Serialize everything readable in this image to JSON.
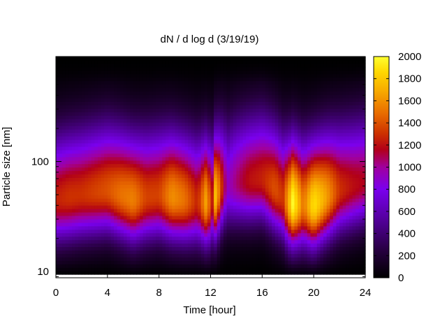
{
  "chart_data": {
    "type": "heatmap",
    "title": "dN / d log d (3/19/19)",
    "xlabel": "Time [hour]",
    "ylabel": "Particle size [nm]",
    "xlim": [
      0,
      24
    ],
    "x_ticks": [
      0,
      4,
      8,
      12,
      16,
      20,
      24
    ],
    "ylim": [
      8.8,
      900
    ],
    "y_scale": "log",
    "y_tick_labels": [
      "10",
      "100"
    ],
    "y_ticks": [
      10,
      100
    ],
    "colorbar": {
      "range": [
        0,
        2000
      ],
      "ticks": [
        0,
        200,
        400,
        600,
        800,
        1000,
        1200,
        1400,
        1600,
        1800,
        2000
      ],
      "palette": [
        "#000000",
        "#7a00c8",
        "#c02818",
        "#e05a00",
        "#ffe000",
        "#ffff30"
      ]
    },
    "grid": false,
    "mode_diameter_nm": [
      [
        0,
        45
      ],
      [
        2,
        50
      ],
      [
        4,
        55
      ],
      [
        6,
        45
      ],
      [
        8,
        50
      ],
      [
        10,
        45
      ],
      [
        12,
        42
      ],
      [
        12.5,
        50
      ],
      [
        13,
        60
      ],
      [
        14,
        65
      ],
      [
        16,
        70
      ],
      [
        18,
        42
      ],
      [
        20,
        40
      ],
      [
        22,
        55
      ],
      [
        24,
        65
      ]
    ],
    "peak_concentration": [
      [
        0,
        1250
      ],
      [
        1,
        1300
      ],
      [
        2,
        1300
      ],
      [
        3,
        1350
      ],
      [
        4,
        1400
      ],
      [
        5,
        1500
      ],
      [
        6,
        1550
      ],
      [
        7,
        1350
      ],
      [
        8,
        1350
      ],
      [
        9,
        1600
      ],
      [
        10,
        1500
      ],
      [
        11,
        1250
      ],
      [
        11.7,
        1700
      ],
      [
        12.1,
        1200
      ],
      [
        12.4,
        1800
      ],
      [
        12.8,
        1350
      ],
      [
        13.3,
        900
      ],
      [
        14,
        1050
      ],
      [
        15,
        1200
      ],
      [
        16,
        1250
      ],
      [
        17,
        1400
      ],
      [
        17.6,
        1300
      ],
      [
        18.4,
        2000
      ],
      [
        19.2,
        1500
      ],
      [
        20,
        1900
      ],
      [
        21,
        1650
      ],
      [
        22,
        1300
      ],
      [
        23,
        1200
      ],
      [
        24,
        1150
      ]
    ]
  }
}
